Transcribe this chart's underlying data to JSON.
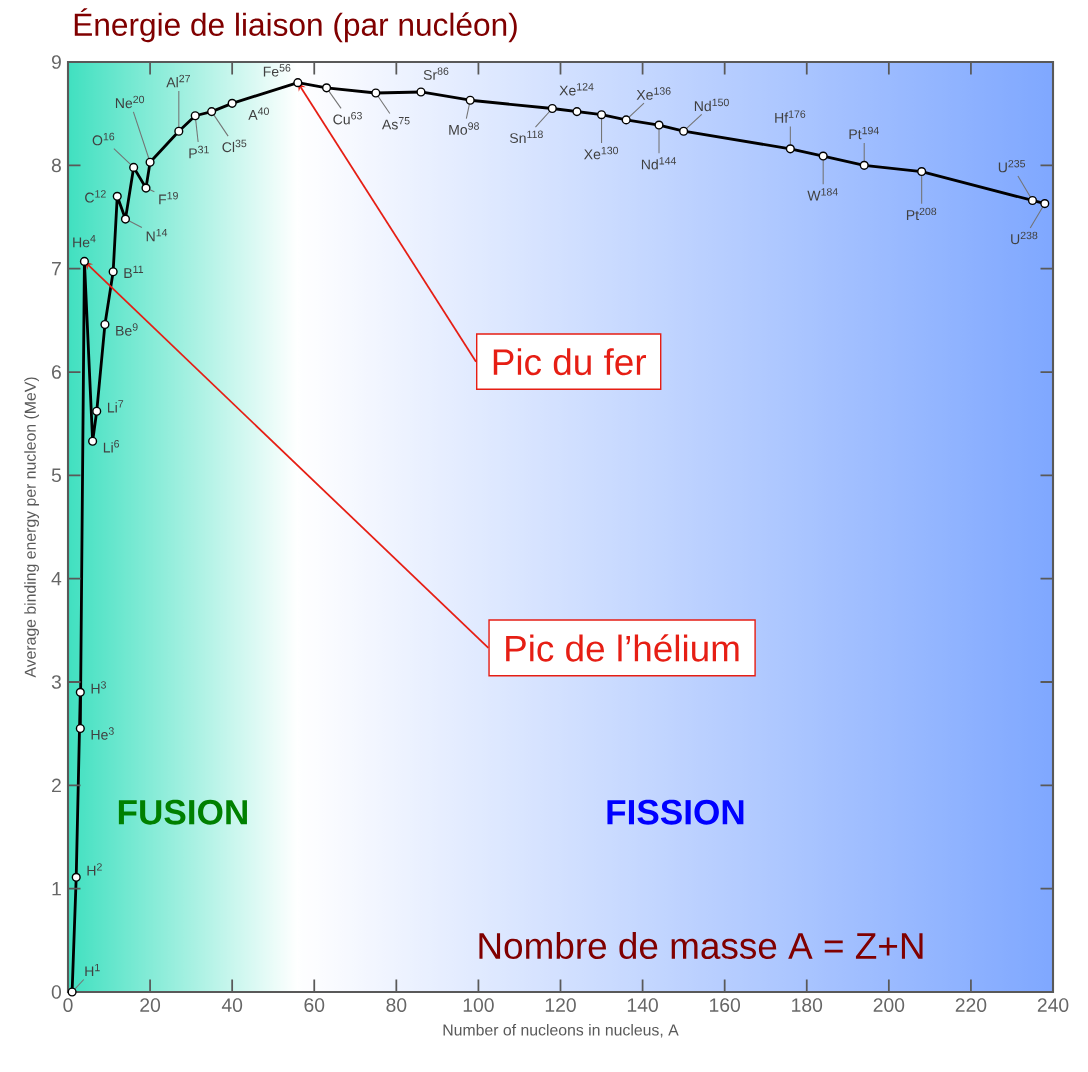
{
  "chart_data": {
    "type": "line",
    "title": "Énergie de liaison (par nucléon)",
    "xlabel": "Number of nucleons in nucleus, A",
    "ylabel": "Average binding energy per nucleon (MeV)",
    "xlim": [
      0,
      240
    ],
    "ylim": [
      0,
      9
    ],
    "xticks": [
      0,
      20,
      40,
      60,
      80,
      100,
      120,
      140,
      160,
      180,
      200,
      220,
      240
    ],
    "yticks": [
      0,
      1,
      2,
      3,
      4,
      5,
      6,
      7,
      8,
      9
    ],
    "marker": "circle",
    "line_style": "solid",
    "series": [
      {
        "color": "#000000",
        "x": [
          1,
          2,
          3,
          3,
          4,
          6,
          7,
          9,
          11,
          12,
          14,
          16,
          19,
          20,
          27,
          31,
          35,
          40,
          56,
          63,
          75,
          86,
          98,
          118,
          124,
          130,
          136,
          144,
          150,
          176,
          184,
          194,
          208,
          235,
          238
        ],
        "values": [
          0,
          1.11,
          2.9,
          2.55,
          7.07,
          5.33,
          5.62,
          6.46,
          6.97,
          7.7,
          7.48,
          7.98,
          7.78,
          8.03,
          8.33,
          8.48,
          8.52,
          8.6,
          8.8,
          8.75,
          8.7,
          8.71,
          8.63,
          8.55,
          8.52,
          8.49,
          8.44,
          8.39,
          8.33,
          8.16,
          8.09,
          8.0,
          7.94,
          7.66,
          7.63
        ]
      }
    ],
    "bands": [
      {
        "axis": "x",
        "from": 0,
        "to": 56,
        "label": "FUSION",
        "color": "#40e0c0"
      },
      {
        "axis": "x",
        "from": 56,
        "to": 240,
        "label": "FISSION",
        "color": "#80a8ff"
      }
    ],
    "annotations": [
      {
        "text": "Pic du fer",
        "x": 56,
        "y": 8.8
      },
      {
        "text": "Pic de l’hélium",
        "x": 4,
        "y": 7.07
      },
      {
        "text": "H$^{1}$",
        "x": 1,
        "y": 0
      },
      {
        "text": "H$^{2}$",
        "x": 2,
        "y": 1.11
      },
      {
        "text": "H$^{3}$",
        "x": 3,
        "y": 2.9
      },
      {
        "text": "He$^{3}$",
        "x": 3,
        "y": 2.55
      },
      {
        "text": "He$^{4}$",
        "x": 4,
        "y": 7.07
      },
      {
        "text": "Li$^{6}$",
        "x": 6,
        "y": 5.33
      },
      {
        "text": "Li$^{7}$",
        "x": 7,
        "y": 5.62
      },
      {
        "text": "Be$^{9}$",
        "x": 9,
        "y": 6.46
      },
      {
        "text": "B$^{11}$",
        "x": 11,
        "y": 6.97
      },
      {
        "text": "C$^{12}$",
        "x": 12,
        "y": 7.7
      },
      {
        "text": "N$^{14}$",
        "x": 14,
        "y": 7.48
      },
      {
        "text": "O$^{16}$",
        "x": 16,
        "y": 7.98
      },
      {
        "text": "F$^{19}$",
        "x": 19,
        "y": 7.78
      },
      {
        "text": "Ne$^{20}$",
        "x": 20,
        "y": 8.03
      },
      {
        "text": "Al$^{27}$",
        "x": 27,
        "y": 8.33
      },
      {
        "text": "P$^{31}$",
        "x": 31,
        "y": 8.48
      },
      {
        "text": "Cl$^{35}$",
        "x": 35,
        "y": 8.52
      },
      {
        "text": "A$^{40}$",
        "x": 40,
        "y": 8.6
      },
      {
        "text": "Fe$^{56}$",
        "x": 56,
        "y": 8.8
      },
      {
        "text": "Cu$^{63}$",
        "x": 63,
        "y": 8.75
      },
      {
        "text": "As$^{75}$",
        "x": 75,
        "y": 8.7
      },
      {
        "text": "Sr$^{86}$",
        "x": 86,
        "y": 8.71
      },
      {
        "text": "Mo$^{98}$",
        "x": 98,
        "y": 8.63
      },
      {
        "text": "Sn$^{118}$",
        "x": 118,
        "y": 8.55
      },
      {
        "text": "Xe$^{124}$",
        "x": 124,
        "y": 8.52
      },
      {
        "text": "Xe$^{130}$",
        "x": 130,
        "y": 8.49
      },
      {
        "text": "Xe$^{136}$",
        "x": 136,
        "y": 8.44
      },
      {
        "text": "Nd$^{144}$",
        "x": 144,
        "y": 8.39
      },
      {
        "text": "Nd$^{150}$",
        "x": 150,
        "y": 8.33
      },
      {
        "text": "Hf$^{176}$",
        "x": 176,
        "y": 8.16
      },
      {
        "text": "W$^{184}$",
        "x": 184,
        "y": 8.09
      },
      {
        "text": "Pt$^{194}$",
        "x": 194,
        "y": 8.0
      },
      {
        "text": "Pt$^{208}$",
        "x": 208,
        "y": 7.94
      },
      {
        "text": "U$^{235}$",
        "x": 235,
        "y": 7.66
      },
      {
        "text": "U$^{238}$",
        "x": 238,
        "y": 7.63
      },
      "Nombre de masse A = Z+N"
    ]
  }
}
